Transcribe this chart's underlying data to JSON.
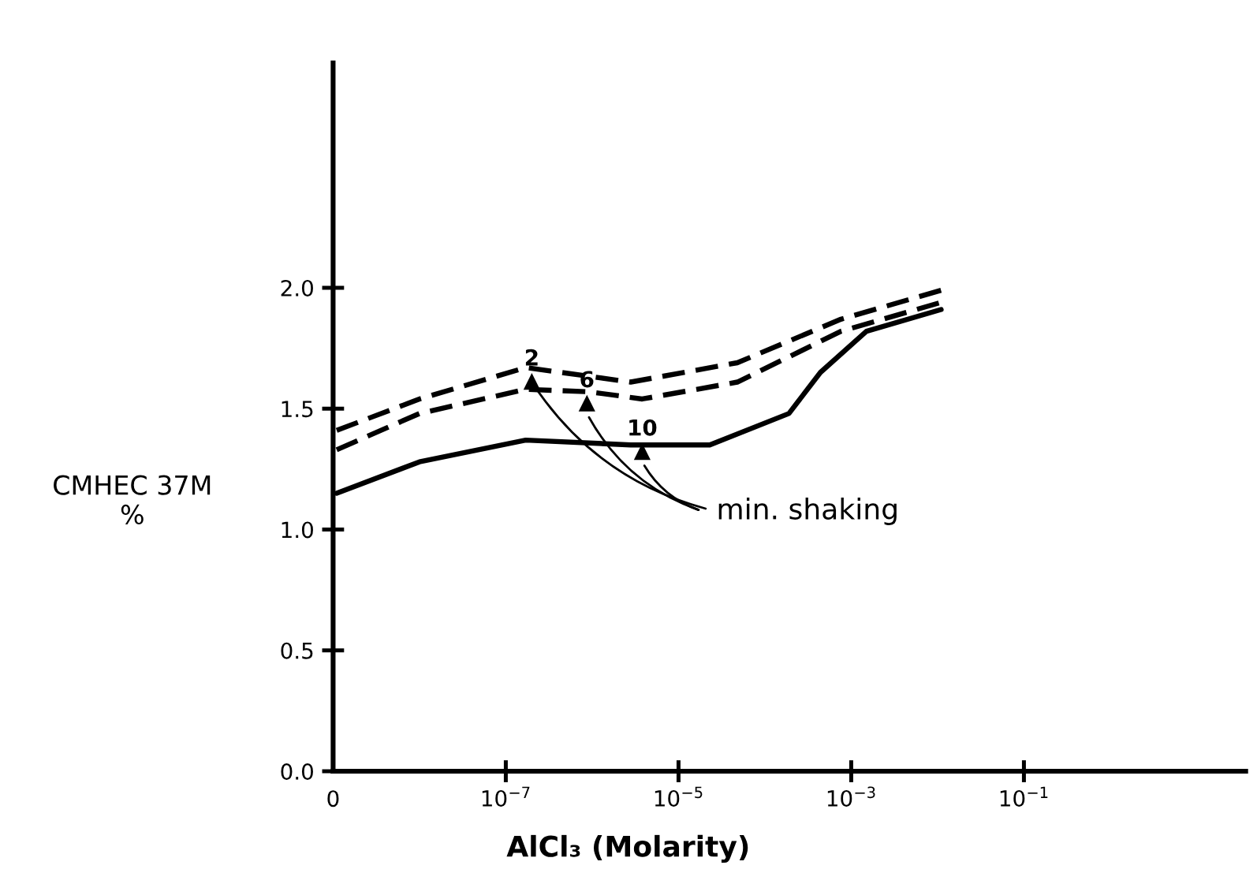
{
  "chart_data": {
    "type": "line",
    "xlabel": "AlCl₃ (Molarity)",
    "ylabel": "CMHEC 37M\n%",
    "log": "x",
    "xlim": [
      1e-09,
      37
    ],
    "ylim": [
      0,
      2.93
    ],
    "xticks": [
      {
        "value": 1e-09,
        "label": "0"
      },
      {
        "value": 1e-07,
        "label": "10$^{−7}$"
      },
      {
        "value": 1e-05,
        "label": "10$^{−5}$"
      },
      {
        "value": 0.001,
        "label": "10$^{−3}$"
      },
      {
        "value": 0.1,
        "label": "10$^{−1}$"
      }
    ],
    "yticks": [
      {
        "value": 0,
        "label": "0.0"
      },
      {
        "value": 0.5,
        "label": "0.5"
      },
      {
        "value": 1,
        "label": "1.0"
      },
      {
        "value": 1.5,
        "label": "1.5"
      },
      {
        "value": 2,
        "label": "2.0"
      }
    ],
    "grid": false,
    "legend": false,
    "series": [
      {
        "color": "#000000",
        "line_style": "dashed",
        "x": [
          1.1e-09,
          1e-08,
          1.7e-07,
          2.8e-06,
          4.8e-05,
          0.00076,
          0.011
        ],
        "values": [
          1.41,
          1.54,
          1.67,
          1.61,
          1.69,
          1.87,
          1.99
        ]
      },
      {
        "color": "#000000",
        "line_style": "dashed",
        "x": [
          1.1e-09,
          1e-08,
          1.7e-07,
          9.1e-07,
          3.8e-06,
          4.8e-05,
          0.00076,
          0.011
        ],
        "values": [
          1.33,
          1.48,
          1.58,
          1.57,
          1.54,
          1.61,
          1.82,
          1.94
        ]
      },
      {
        "color": "#000000",
        "line_style": "solid",
        "x": [
          1.1e-09,
          1e-08,
          1.7e-07,
          2.8e-06,
          2.3e-05,
          0.00019,
          0.00044,
          0.0015,
          0.011
        ],
        "values": [
          1.15,
          1.28,
          1.37,
          1.35,
          1.35,
          1.48,
          1.65,
          1.82,
          1.91
        ]
      }
    ],
    "annotations": [
      {
        "text": "2",
        "x": 2e-07,
        "y": 1.61
      },
      {
        "text": "6",
        "x": 8.7e-07,
        "y": 1.52
      },
      {
        "text": "10",
        "x": 3.8e-06,
        "y": 1.32
      },
      {
        "text": "min. shaking",
        "x": 2e-07,
        "y": 1.61
      }
    ]
  }
}
